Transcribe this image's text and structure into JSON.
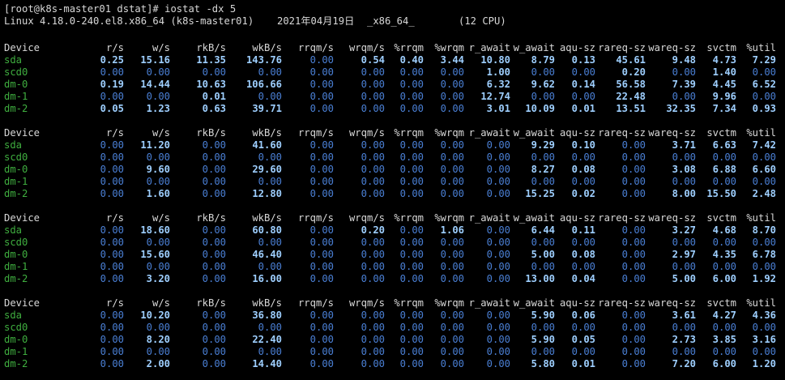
{
  "terminal": {
    "prompt": "[root@k8s-master01 dstat]# iostat -dx 5",
    "sysinfo": {
      "kernel": "Linux 4.18.0-240.el8.x86_64 (k8s-master01)",
      "date": "2021年04月19日",
      "arch": "_x86_64_",
      "cpus": "(12 CPU)"
    },
    "columns": [
      "Device",
      "r/s",
      "w/s",
      "rkB/s",
      "wkB/s",
      "rrqm/s",
      "wrqm/s",
      "%rrqm",
      "%wrqm",
      "r_await",
      "w_await",
      "aqu-sz",
      "rareq-sz",
      "wareq-sz",
      "svctm",
      "%util"
    ],
    "blocks": [
      {
        "rows": [
          {
            "device": "sda",
            "values": [
              "0.25",
              "15.16",
              "11.35",
              "143.76",
              "0.00",
              "0.54",
              "0.40",
              "3.44",
              "10.80",
              "8.79",
              "0.13",
              "45.61",
              "9.48",
              "4.73",
              "7.29"
            ]
          },
          {
            "device": "scd0",
            "values": [
              "0.00",
              "0.00",
              "0.00",
              "0.00",
              "0.00",
              "0.00",
              "0.00",
              "0.00",
              "1.00",
              "0.00",
              "0.00",
              "0.20",
              "0.00",
              "1.40",
              "0.00"
            ]
          },
          {
            "device": "dm-0",
            "values": [
              "0.19",
              "14.44",
              "10.63",
              "106.66",
              "0.00",
              "0.00",
              "0.00",
              "0.00",
              "6.32",
              "9.62",
              "0.14",
              "56.58",
              "7.39",
              "4.45",
              "6.52"
            ]
          },
          {
            "device": "dm-1",
            "values": [
              "0.00",
              "0.00",
              "0.01",
              "0.00",
              "0.00",
              "0.00",
              "0.00",
              "0.00",
              "12.74",
              "0.00",
              "0.00",
              "22.48",
              "0.00",
              "9.96",
              "0.00"
            ]
          },
          {
            "device": "dm-2",
            "values": [
              "0.05",
              "1.23",
              "0.63",
              "39.71",
              "0.00",
              "0.00",
              "0.00",
              "0.00",
              "3.01",
              "10.09",
              "0.01",
              "13.51",
              "32.35",
              "7.34",
              "0.93"
            ]
          }
        ]
      },
      {
        "rows": [
          {
            "device": "sda",
            "values": [
              "0.00",
              "11.20",
              "0.00",
              "41.60",
              "0.00",
              "0.00",
              "0.00",
              "0.00",
              "0.00",
              "9.29",
              "0.10",
              "0.00",
              "3.71",
              "6.63",
              "7.42"
            ]
          },
          {
            "device": "scd0",
            "values": [
              "0.00",
              "0.00",
              "0.00",
              "0.00",
              "0.00",
              "0.00",
              "0.00",
              "0.00",
              "0.00",
              "0.00",
              "0.00",
              "0.00",
              "0.00",
              "0.00",
              "0.00"
            ]
          },
          {
            "device": "dm-0",
            "values": [
              "0.00",
              "9.60",
              "0.00",
              "29.60",
              "0.00",
              "0.00",
              "0.00",
              "0.00",
              "0.00",
              "8.27",
              "0.08",
              "0.00",
              "3.08",
              "6.88",
              "6.60"
            ]
          },
          {
            "device": "dm-1",
            "values": [
              "0.00",
              "0.00",
              "0.00",
              "0.00",
              "0.00",
              "0.00",
              "0.00",
              "0.00",
              "0.00",
              "0.00",
              "0.00",
              "0.00",
              "0.00",
              "0.00",
              "0.00"
            ]
          },
          {
            "device": "dm-2",
            "values": [
              "0.00",
              "1.60",
              "0.00",
              "12.80",
              "0.00",
              "0.00",
              "0.00",
              "0.00",
              "0.00",
              "15.25",
              "0.02",
              "0.00",
              "8.00",
              "15.50",
              "2.48"
            ]
          }
        ]
      },
      {
        "rows": [
          {
            "device": "sda",
            "values": [
              "0.00",
              "18.60",
              "0.00",
              "60.80",
              "0.00",
              "0.20",
              "0.00",
              "1.06",
              "0.00",
              "6.44",
              "0.11",
              "0.00",
              "3.27",
              "4.68",
              "8.70"
            ]
          },
          {
            "device": "scd0",
            "values": [
              "0.00",
              "0.00",
              "0.00",
              "0.00",
              "0.00",
              "0.00",
              "0.00",
              "0.00",
              "0.00",
              "0.00",
              "0.00",
              "0.00",
              "0.00",
              "0.00",
              "0.00"
            ]
          },
          {
            "device": "dm-0",
            "values": [
              "0.00",
              "15.60",
              "0.00",
              "46.40",
              "0.00",
              "0.00",
              "0.00",
              "0.00",
              "0.00",
              "5.00",
              "0.08",
              "0.00",
              "2.97",
              "4.35",
              "6.78"
            ]
          },
          {
            "device": "dm-1",
            "values": [
              "0.00",
              "0.00",
              "0.00",
              "0.00",
              "0.00",
              "0.00",
              "0.00",
              "0.00",
              "0.00",
              "0.00",
              "0.00",
              "0.00",
              "0.00",
              "0.00",
              "0.00"
            ]
          },
          {
            "device": "dm-2",
            "values": [
              "0.00",
              "3.20",
              "0.00",
              "16.00",
              "0.00",
              "0.00",
              "0.00",
              "0.00",
              "0.00",
              "13.00",
              "0.04",
              "0.00",
              "5.00",
              "6.00",
              "1.92"
            ]
          }
        ]
      },
      {
        "rows": [
          {
            "device": "sda",
            "values": [
              "0.00",
              "10.20",
              "0.00",
              "36.80",
              "0.00",
              "0.00",
              "0.00",
              "0.00",
              "0.00",
              "5.90",
              "0.06",
              "0.00",
              "3.61",
              "4.27",
              "4.36"
            ]
          },
          {
            "device": "scd0",
            "values": [
              "0.00",
              "0.00",
              "0.00",
              "0.00",
              "0.00",
              "0.00",
              "0.00",
              "0.00",
              "0.00",
              "0.00",
              "0.00",
              "0.00",
              "0.00",
              "0.00",
              "0.00"
            ]
          },
          {
            "device": "dm-0",
            "values": [
              "0.00",
              "8.20",
              "0.00",
              "22.40",
              "0.00",
              "0.00",
              "0.00",
              "0.00",
              "0.00",
              "5.90",
              "0.05",
              "0.00",
              "2.73",
              "3.85",
              "3.16"
            ]
          },
          {
            "device": "dm-1",
            "values": [
              "0.00",
              "0.00",
              "0.00",
              "0.00",
              "0.00",
              "0.00",
              "0.00",
              "0.00",
              "0.00",
              "0.00",
              "0.00",
              "0.00",
              "0.00",
              "0.00",
              "0.00"
            ]
          },
          {
            "device": "dm-2",
            "values": [
              "0.00",
              "2.00",
              "0.00",
              "14.40",
              "0.00",
              "0.00",
              "0.00",
              "0.00",
              "0.00",
              "5.80",
              "0.01",
              "0.00",
              "7.20",
              "6.00",
              "1.20"
            ]
          }
        ]
      }
    ],
    "colors": {
      "background": "#000000",
      "text": "#d8d8d8",
      "device": "#3fae3f",
      "value_zero": "#4a7fd4",
      "value_nonzero": "#9ecfff"
    }
  }
}
